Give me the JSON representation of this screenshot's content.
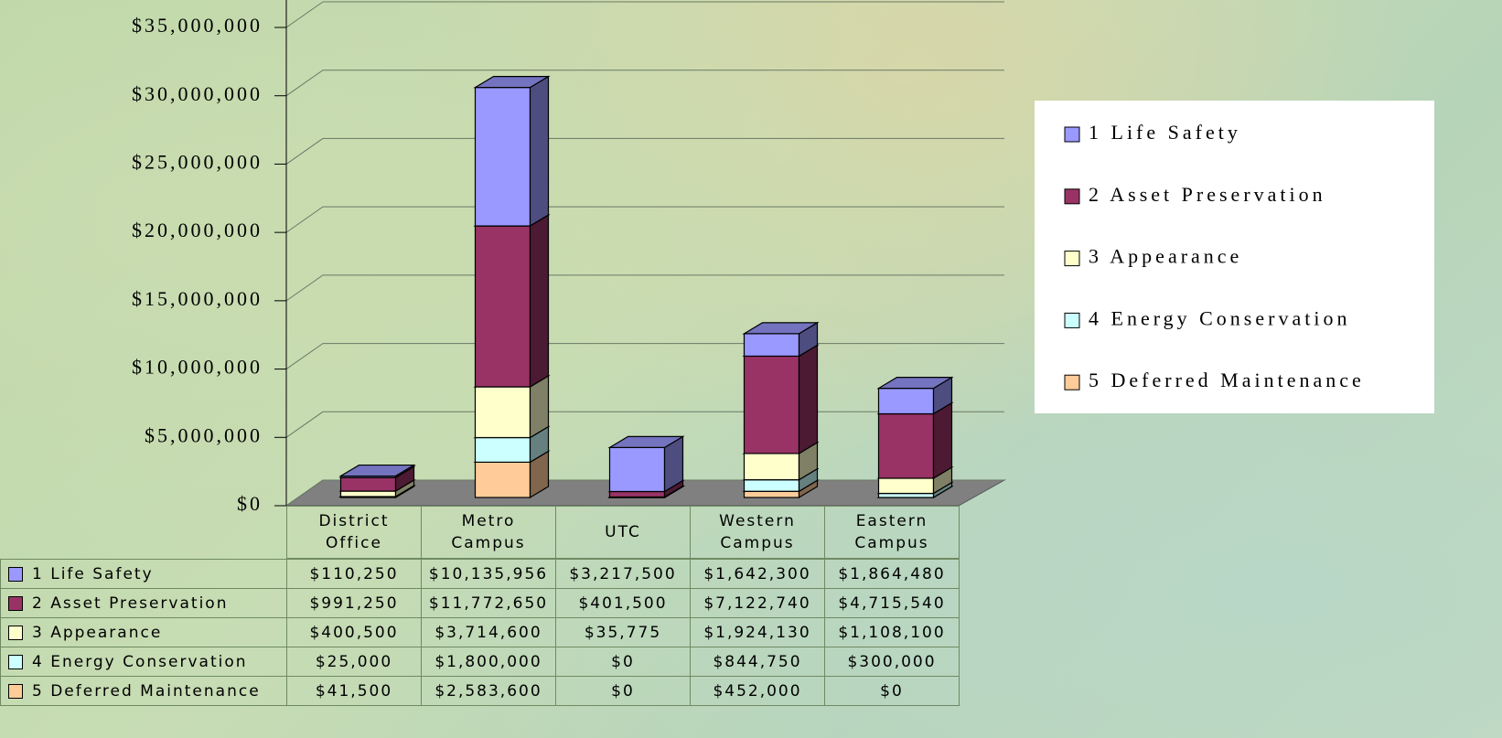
{
  "chart_data": {
    "type": "bar",
    "stacked": true,
    "categories": [
      "District Office",
      "Metro Campus",
      "UTC",
      "Western Campus",
      "Eastern Campus"
    ],
    "series": [
      {
        "name": "1 Life Safety",
        "color": "#9999ff",
        "values": [
          110250,
          10135956,
          3217500,
          1642300,
          1864480
        ],
        "value_labels": [
          "$110,250",
          "$10,135,956",
          "$3,217,500",
          "$1,642,300",
          "$1,864,480"
        ]
      },
      {
        "name": "2 Asset Preservation",
        "color": "#993366",
        "values": [
          991250,
          11772650,
          401500,
          7122740,
          4715540
        ],
        "value_labels": [
          "$991,250",
          "$11,772,650",
          "$401,500",
          "$7,122,740",
          "$4,715,540"
        ]
      },
      {
        "name": "3 Appearance",
        "color": "#ffffcc",
        "values": [
          400500,
          3714600,
          35775,
          1924130,
          1108100
        ],
        "value_labels": [
          "$400,500",
          "$3,714,600",
          "$35,775",
          "$1,924,130",
          "$1,108,100"
        ]
      },
      {
        "name": "4 Energy Conservation",
        "color": "#ccffff",
        "values": [
          25000,
          1800000,
          0,
          844750,
          300000
        ],
        "value_labels": [
          "$25,000",
          "$1,800,000",
          "$0",
          "$844,750",
          "$300,000"
        ]
      },
      {
        "name": "5 Deferred Maintenance",
        "color": "#ffcc99",
        "values": [
          41500,
          2583600,
          0,
          452000,
          0
        ],
        "value_labels": [
          "$41,500",
          "$2,583,600",
          "$0",
          "$452,000",
          "$0"
        ]
      }
    ],
    "ylim": [
      0,
      35000000
    ],
    "yticks": [
      {
        "value": 0,
        "label": "$0"
      },
      {
        "value": 5000000,
        "label": "$5,000,000"
      },
      {
        "value": 10000000,
        "label": "$10,000,000"
      },
      {
        "value": 15000000,
        "label": "$15,000,000"
      },
      {
        "value": 20000000,
        "label": "$20,000,000"
      },
      {
        "value": 25000000,
        "label": "$25,000,000"
      },
      {
        "value": 30000000,
        "label": "$30,000,000"
      },
      {
        "value": 35000000,
        "label": "$35,000,000"
      }
    ],
    "grid": true,
    "legend": "right"
  }
}
